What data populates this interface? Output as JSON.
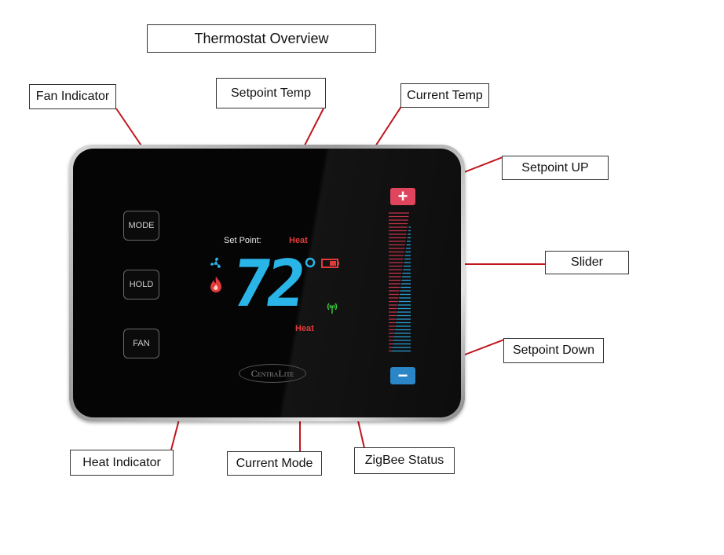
{
  "title": "Thermostat Overview",
  "callouts": {
    "fan_indicator": "Fan Indicator",
    "setpoint_temp": "Setpoint Temp",
    "current_temp": "Current Temp",
    "setpoint_up": "Setpoint UP",
    "slider": "Slider",
    "setpoint_down": "Setpoint Down",
    "heat_indicator": "Heat Indicator",
    "current_mode": "Current Mode",
    "zigbee_status": "ZigBee Status"
  },
  "device": {
    "buttons": [
      "MODE",
      "HOLD",
      "FAN"
    ],
    "set_point_label": "Set Point:",
    "setpoint_mode": "Heat",
    "current_temp": "72",
    "degree": "°",
    "current_mode": "Heat",
    "brand": "CentraLite",
    "plus": "+",
    "minus": "−"
  },
  "colors": {
    "temp_blue": "#29b5e8",
    "heat_red": "#e23a3a",
    "zigbee_green": "#3bbf3b",
    "leader_red": "#c0161c",
    "up_button": "#e0455e",
    "down_button": "#2a86c6"
  }
}
